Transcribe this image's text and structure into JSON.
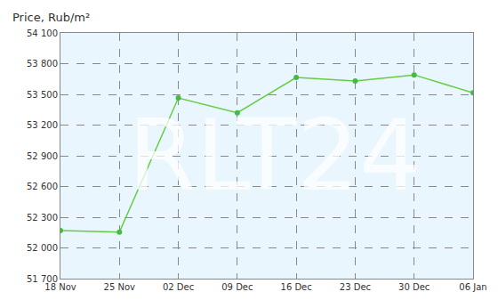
{
  "chart_data": {
    "type": "line",
    "y_label": "Price, Rub/m²",
    "annotations": [
      "RLT24"
    ],
    "categories": [
      "18 Nov",
      "25 Nov",
      "02 Dec",
      "09 Dec",
      "16 Dec",
      "23 Dec",
      "30 Dec",
      "06 Jan"
    ],
    "values": [
      52170,
      52155,
      53465,
      53320,
      53665,
      53630,
      53690,
      53515
    ],
    "color": "#66cc44",
    "marker": "circle",
    "ylim": [
      51700,
      54100
    ],
    "yticks": [
      {
        "value": 51700,
        "label": "51 700"
      },
      {
        "value": 52000,
        "label": "52 000"
      },
      {
        "value": 52300,
        "label": "52 300"
      },
      {
        "value": 52600,
        "label": "52 600"
      },
      {
        "value": 52900,
        "label": "52 900"
      },
      {
        "value": 53200,
        "label": "53 200"
      },
      {
        "value": 53500,
        "label": "53 500"
      },
      {
        "value": 53800,
        "label": "53 800"
      },
      {
        "value": 54100,
        "label": "54 100"
      }
    ],
    "grid": true
  }
}
